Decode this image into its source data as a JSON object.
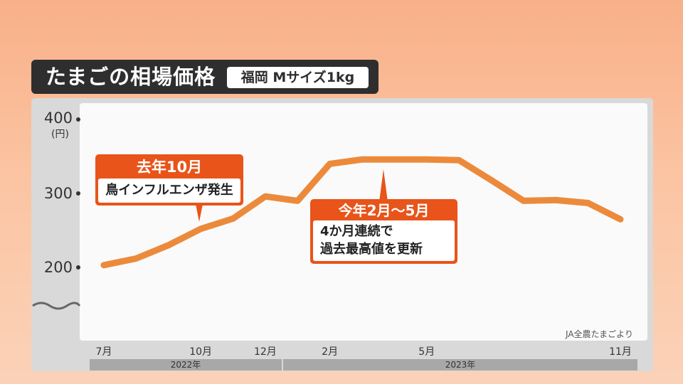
{
  "header": {
    "title": "たまごの相場価格",
    "subtitle": "福岡 Mサイズ1kg"
  },
  "chart_data": {
    "type": "line",
    "yticks": [
      "400",
      "300",
      "200"
    ],
    "yunit": "(円)",
    "x": [
      0,
      1,
      2,
      3,
      4,
      5,
      6,
      7,
      8,
      9,
      10,
      11,
      12,
      13,
      14,
      15,
      16
    ],
    "values": [
      203,
      212,
      230,
      252,
      266,
      296,
      290,
      340,
      346,
      346,
      346,
      345,
      318,
      290,
      291,
      287,
      265
    ],
    "xticks": [
      {
        "label": "7月",
        "index": 0
      },
      {
        "label": "10月",
        "index": 3
      },
      {
        "label": "12月",
        "index": 5
      },
      {
        "label": "2月",
        "index": 7
      },
      {
        "label": "5月",
        "index": 10
      },
      {
        "label": "11月",
        "index": 16
      }
    ],
    "years": [
      "2022年",
      "2023年"
    ],
    "ylim": [
      200,
      400
    ],
    "line_color": "#ec8a3c",
    "source": "JA全農たまごより"
  },
  "callouts": {
    "first": {
      "head": "去年10月",
      "body": "鳥インフルエンザ発生"
    },
    "second": {
      "head": "今年2月〜5月",
      "body_line1": "4か月連続で",
      "body_line2": "過去最高値を更新"
    }
  },
  "colors": {
    "accent": "#e8541a",
    "title_bg": "#2e2e2e"
  }
}
